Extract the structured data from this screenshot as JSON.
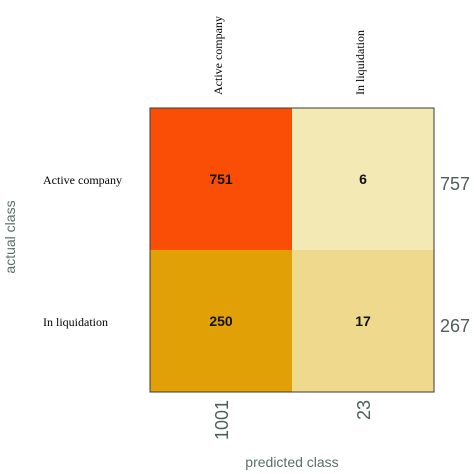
{
  "chart_data": {
    "type": "heatmap",
    "xlabel": "predicted class",
    "ylabel": "actual class",
    "columns": [
      "Active company",
      "In liquidation"
    ],
    "rows": [
      "Active company",
      "In liquidation"
    ],
    "values": [
      [
        751,
        6
      ],
      [
        250,
        17
      ]
    ],
    "row_totals": [
      757,
      267
    ],
    "column_totals": [
      1001,
      23
    ],
    "cell_colors": [
      [
        "#fa4e06",
        "#f3e9b4"
      ],
      [
        "#e2a007",
        "#eed98c"
      ]
    ],
    "frame_color": "#3a3a3a",
    "axis_label_color": "#5c6f68",
    "total_color": "#4e5f59"
  }
}
